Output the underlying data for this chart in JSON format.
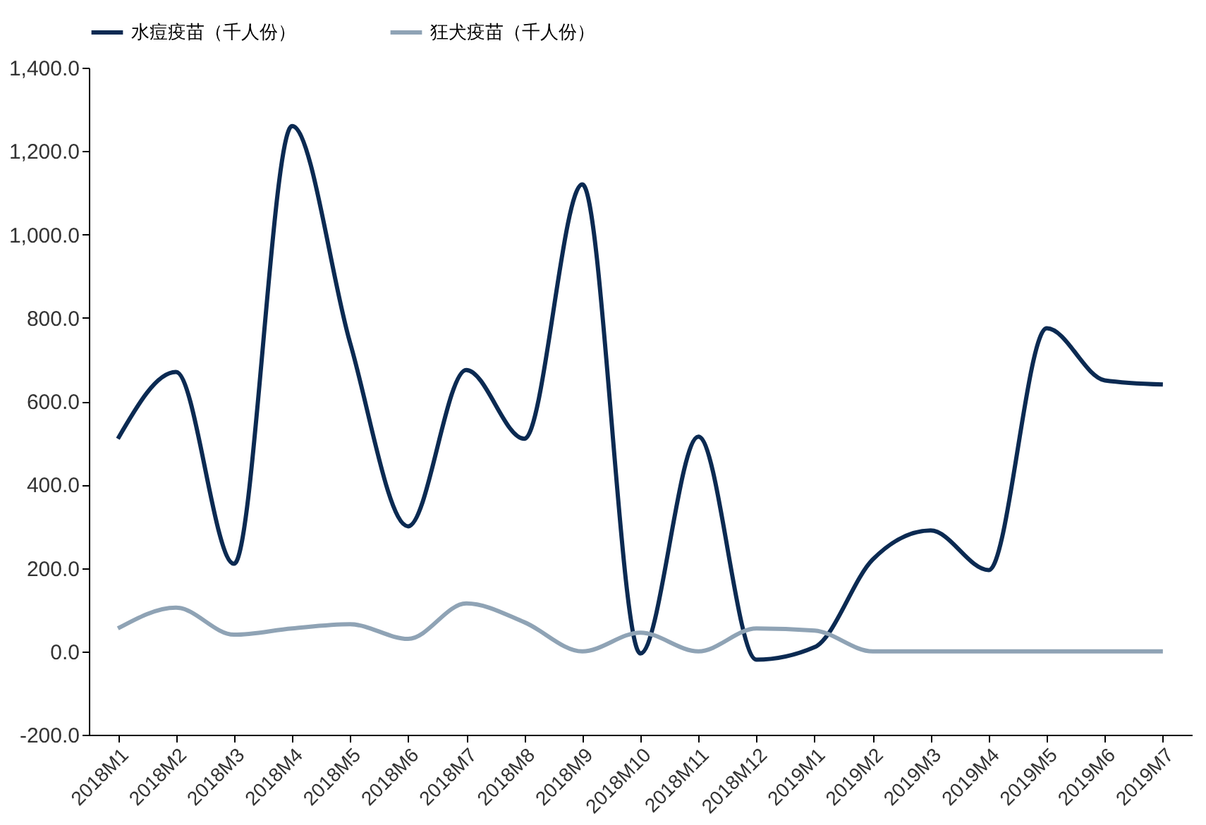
{
  "chart_data": {
    "type": "line",
    "categories": [
      "2018M1",
      "2018M2",
      "2018M3",
      "2018M4",
      "2018M5",
      "2018M6",
      "2018M7",
      "2018M8",
      "2018M9",
      "2018M10",
      "2018M11",
      "2018M12",
      "2019M1",
      "2019M2",
      "2019M3",
      "2019M4",
      "2019M5",
      "2019M6",
      "2019M7"
    ],
    "series": [
      {
        "name": "水痘疫苗（千人份）",
        "color": "#0b2a52",
        "values": [
          510,
          670,
          210,
          1260,
          740,
          300,
          675,
          510,
          1120,
          -5,
          515,
          -20,
          10,
          220,
          290,
          195,
          775,
          650,
          640
        ]
      },
      {
        "name": "狂犬疫苗（千人份）",
        "color": "#8fa3b5",
        "values": [
          55,
          105,
          40,
          55,
          65,
          30,
          115,
          70,
          0,
          45,
          0,
          55,
          50,
          0,
          0,
          0,
          0,
          0,
          0
        ]
      }
    ],
    "ylim": [
      -200,
      1400
    ],
    "yticks": [
      {
        "value": -200,
        "label": "-200.0"
      },
      {
        "value": 0,
        "label": "0.0"
      },
      {
        "value": 200,
        "label": "200.0"
      },
      {
        "value": 400,
        "label": "400.0"
      },
      {
        "value": 600,
        "label": "600.0"
      },
      {
        "value": 800,
        "label": "800.0"
      },
      {
        "value": 1000,
        "label": "1,000.0"
      },
      {
        "value": 1200,
        "label": "1,200.0"
      },
      {
        "value": 1400,
        "label": "1,400.0"
      }
    ],
    "grid": false,
    "legend": "top",
    "marker": "none",
    "line_style": "solid"
  }
}
